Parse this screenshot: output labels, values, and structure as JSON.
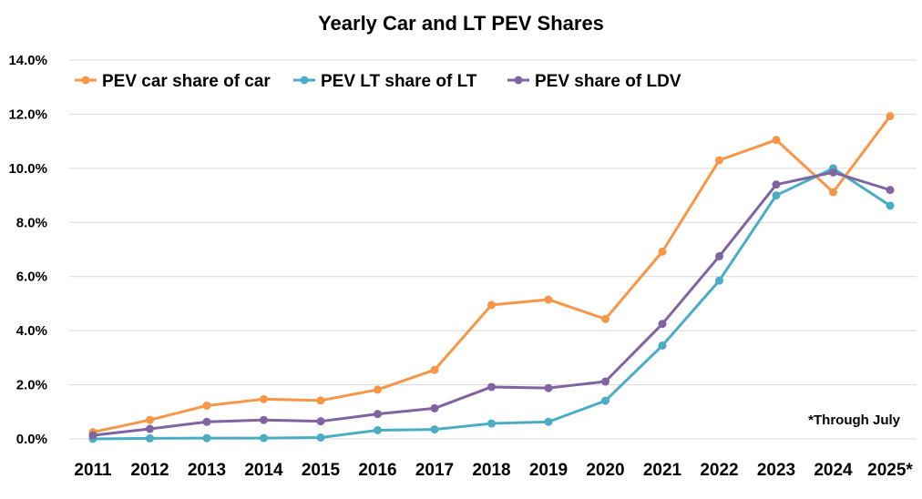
{
  "chart_data": {
    "type": "line",
    "title": "Yearly Car and LT PEV Shares",
    "xlabel": "",
    "ylabel": "",
    "categories": [
      "2011",
      "2012",
      "2013",
      "2014",
      "2015",
      "2016",
      "2017",
      "2018",
      "2019",
      "2020",
      "2021",
      "2022",
      "2023",
      "2024",
      "2025*"
    ],
    "ylim": [
      0,
      14
    ],
    "yticks": [
      0,
      2,
      4,
      6,
      8,
      10,
      12,
      14
    ],
    "ytick_labels": [
      "0.0%",
      "2.0%",
      "4.0%",
      "6.0%",
      "8.0%",
      "10.0%",
      "12.0%",
      "14.0%"
    ],
    "grid": true,
    "legend_position": "top-left",
    "annotation": "*Through July",
    "series": [
      {
        "name": "PEV car share of car",
        "color": "#f79646",
        "values": [
          0.25,
          0.7,
          1.23,
          1.47,
          1.42,
          1.82,
          2.55,
          4.95,
          5.15,
          4.43,
          6.92,
          10.3,
          11.05,
          9.12,
          11.93
        ]
      },
      {
        "name": "PEV LT share of LT",
        "color": "#4bacc6",
        "values": [
          0.0,
          0.02,
          0.03,
          0.03,
          0.05,
          0.32,
          0.35,
          0.57,
          0.63,
          1.41,
          3.45,
          5.85,
          9.0,
          10.0,
          8.62
        ]
      },
      {
        "name": "PEV share of LDV",
        "color": "#8064a2",
        "values": [
          0.13,
          0.37,
          0.63,
          0.7,
          0.65,
          0.92,
          1.13,
          1.92,
          1.88,
          2.12,
          4.25,
          6.75,
          9.4,
          9.85,
          9.2
        ]
      }
    ]
  }
}
